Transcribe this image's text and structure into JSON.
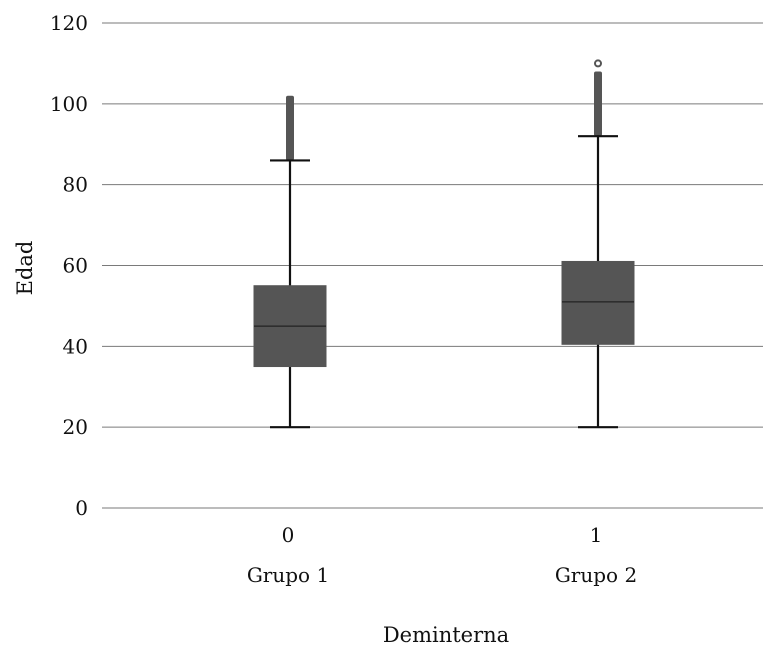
{
  "chart_data": {
    "type": "boxplot",
    "xlabel": "Deminterna",
    "ylabel": "Edad",
    "ylim": [
      0,
      120
    ],
    "yticks": [
      0,
      20,
      40,
      60,
      80,
      100,
      120
    ],
    "grid": true,
    "categories": [
      {
        "tick": "0",
        "label": "Grupo 1",
        "min": 20,
        "q1": 35,
        "median": 45,
        "q3": 55,
        "max": 86,
        "outlier_range": [
          86,
          102
        ],
        "outliers": []
      },
      {
        "tick": "1",
        "label": "Grupo 2",
        "min": 20,
        "q1": 40.5,
        "median": 51,
        "q3": 61,
        "max": 92,
        "outlier_range": [
          92,
          108
        ],
        "outliers": [
          110
        ]
      }
    ]
  }
}
